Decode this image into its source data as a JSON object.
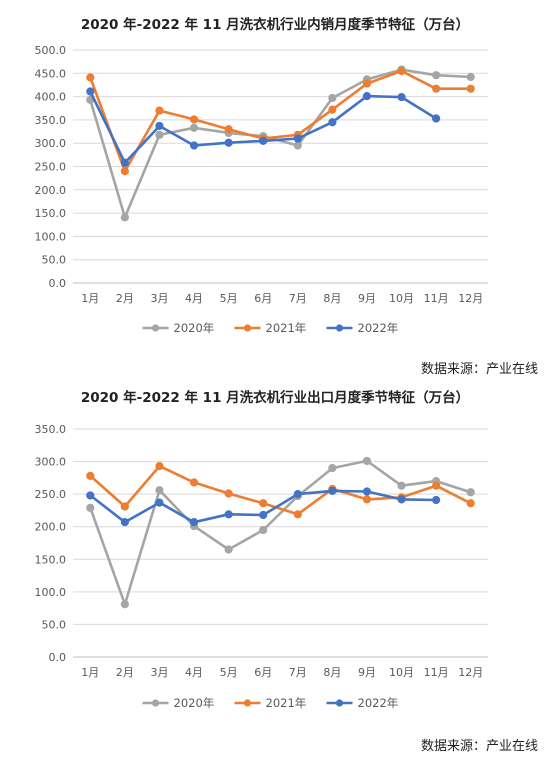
{
  "charts": [
    {
      "source": "数据来源：产业在线",
      "chart_data": {
        "type": "line",
        "title": "2020 年-2022 年 11 月洗衣机行业内销月度季节特征（万台）",
        "categories": [
          "1月",
          "2月",
          "3月",
          "4月",
          "5月",
          "6月",
          "7月",
          "8月",
          "9月",
          "10月",
          "11月",
          "12月"
        ],
        "yticks": [
          "0.0",
          "50.0",
          "100.0",
          "150.0",
          "200.0",
          "250.0",
          "300.0",
          "350.0",
          "400.0",
          "450.0",
          "500.0"
        ],
        "ylim": [
          0,
          500
        ],
        "grid": true,
        "legend": "bottom",
        "series": [
          {
            "name": "2020年",
            "color": "#A5A5A5",
            "values": [
              393,
              141,
              318,
              333,
              322,
              315,
              295,
              397,
              437,
              458,
              446,
              442
            ]
          },
          {
            "name": "2021年",
            "color": "#ED7D31",
            "values": [
              441,
              240,
              370,
              351,
              330,
              310,
              318,
              372,
              428,
              455,
              417,
              417
            ]
          },
          {
            "name": "2022年",
            "color": "#4472C4",
            "values": [
              411,
              258,
              337,
              295,
              301,
              305,
              310,
              345,
              401,
              399,
              353,
              null
            ]
          }
        ]
      }
    },
    {
      "source": "数据来源：产业在线",
      "chart_data": {
        "type": "line",
        "title": "2020 年-2022 年 11 月洗衣机行业出口月度季节特征（万台）",
        "categories": [
          "1月",
          "2月",
          "3月",
          "4月",
          "5月",
          "6月",
          "7月",
          "8月",
          "9月",
          "10月",
          "11月",
          "12月"
        ],
        "yticks": [
          "0.0",
          "50.0",
          "100.0",
          "150.0",
          "200.0",
          "250.0",
          "300.0",
          "350.0"
        ],
        "ylim": [
          0,
          350
        ],
        "grid": true,
        "legend": "bottom",
        "series": [
          {
            "name": "2020年",
            "color": "#A5A5A5",
            "values": [
              229,
              81,
              256,
              201,
              165,
              195,
              247,
              290,
              301,
              263,
              270,
              253
            ]
          },
          {
            "name": "2021年",
            "color": "#ED7D31",
            "values": [
              278,
              231,
              293,
              268,
              251,
              236,
              219,
              258,
              242,
              245,
              263,
              236
            ]
          },
          {
            "name": "2022年",
            "color": "#4472C4",
            "values": [
              248,
              207,
              237,
              207,
              219,
              218,
              250,
              255,
              254,
              242,
              241,
              null
            ]
          }
        ]
      }
    }
  ]
}
